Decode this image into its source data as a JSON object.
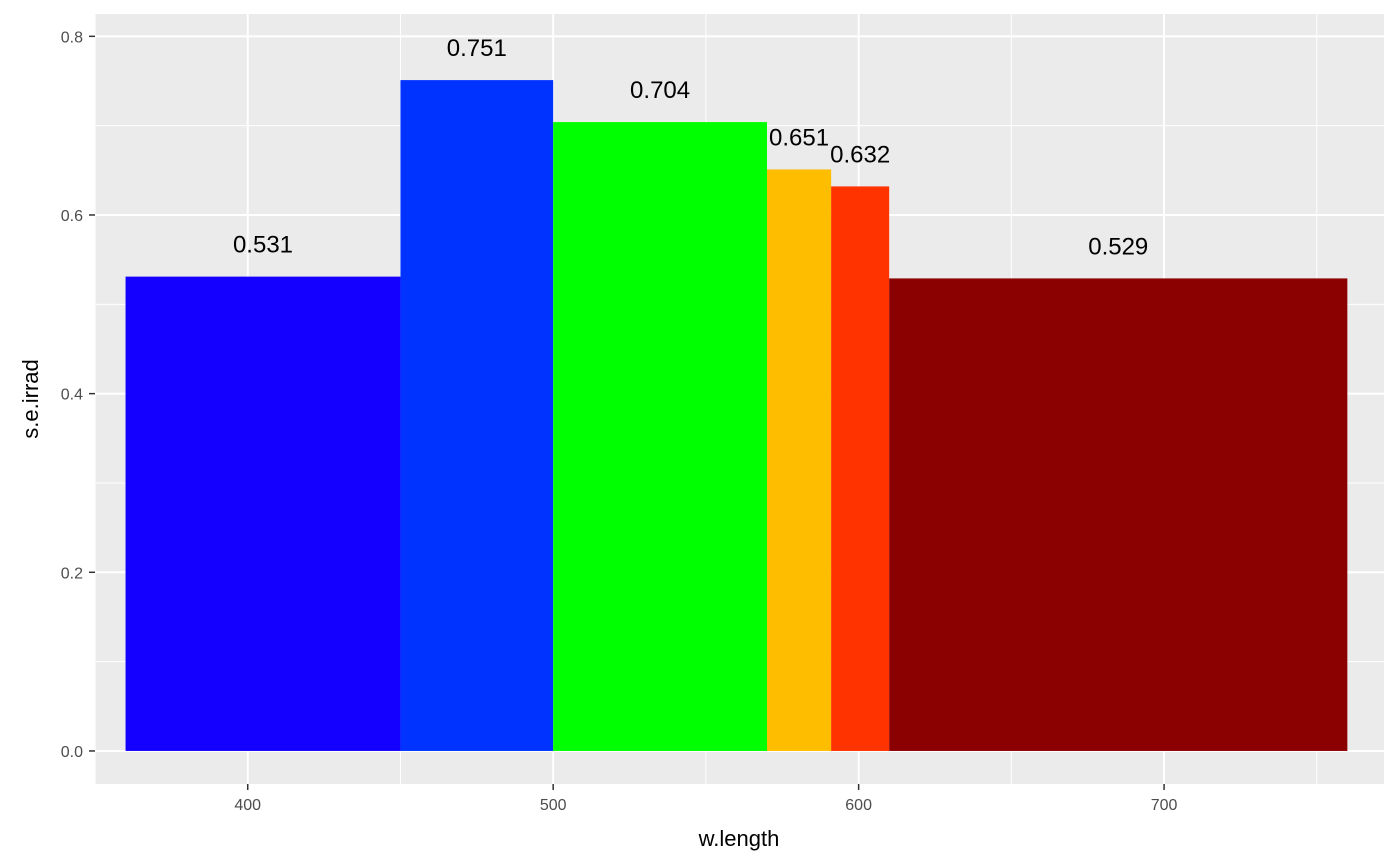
{
  "chart_data": {
    "type": "bar",
    "xlabel": "w.length",
    "ylabel": "s.e.irrad",
    "xlim": [
      350,
      772
    ],
    "ylim": [
      -0.037,
      0.825
    ],
    "x_ticks": [
      400,
      500,
      600,
      700
    ],
    "y_ticks": [
      0.0,
      0.2,
      0.4,
      0.6,
      0.8
    ],
    "y_tick_labels": [
      "0.0",
      "0.2",
      "0.4",
      "0.6",
      "0.8"
    ],
    "x_tick_labels": [
      "400",
      "500",
      "600",
      "700"
    ],
    "grid": true,
    "bars": [
      {
        "x_start": 360,
        "x_end": 450,
        "value": 0.531,
        "label": "0.531",
        "color": "#1400ff"
      },
      {
        "x_start": 450,
        "x_end": 500,
        "value": 0.751,
        "label": "0.751",
        "color": "#0033ff"
      },
      {
        "x_start": 500,
        "x_end": 570,
        "value": 0.704,
        "label": "0.704",
        "color": "#00ff00"
      },
      {
        "x_start": 570,
        "x_end": 591,
        "value": 0.651,
        "label": "0.651",
        "color": "#ffbd00"
      },
      {
        "x_start": 591,
        "x_end": 610,
        "value": 0.632,
        "label": "0.632",
        "color": "#ff3300"
      },
      {
        "x_start": 610,
        "x_end": 760,
        "value": 0.529,
        "label": "0.529",
        "color": "#8b0000"
      }
    ]
  }
}
